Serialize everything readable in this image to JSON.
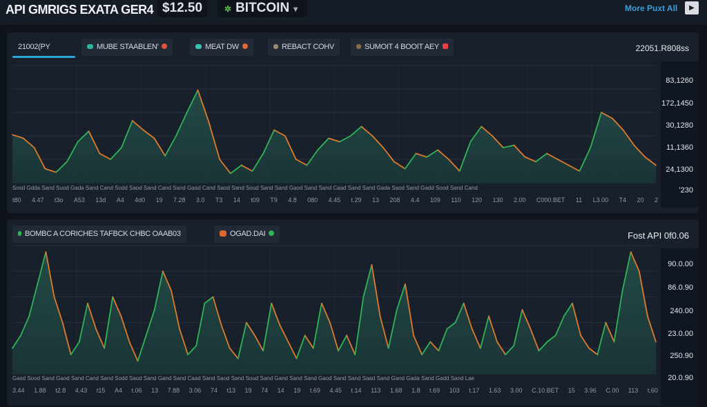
{
  "header": {
    "title": "API GMRIGS EXATA GER4",
    "price": "$12.50",
    "coin": "BITCOIN",
    "coin_icon": "bitcoin-icon",
    "more_link": "More Puxt All",
    "play_icon": "play-icon"
  },
  "colors": {
    "up": "#2fb457",
    "down": "#e07b2c",
    "down2": "#d95c38",
    "fill": "#1f4040",
    "accent": "#2aa7d6"
  },
  "panel1": {
    "tabs": [
      {
        "label": "21002(PY",
        "active": true
      },
      {
        "label": "MUBE STAABLEN'",
        "dot": "#2bb59a",
        "end_dot": "#e2533a"
      },
      {
        "label": "MEAT DW",
        "dot": "#38c2b0",
        "end_dot": "#e2693a"
      },
      {
        "label": "REBACT COHV",
        "dot": "#9c8a70"
      },
      {
        "label": "SUMOIT 4 BOOIT AEY",
        "dot": "#8a6a4a",
        "end_dot": "#e8403c"
      }
    ],
    "right_text": "22051.R808ss",
    "y_labels": [
      "83,1260",
      "172,1450",
      "30,1280",
      "11,1360",
      "24,1300",
      "'230"
    ],
    "x_row1": "Sosd Gdda Sand Suod Gada Sand Cand Sodd Saod Sand Cand Sand Gaad Cand Saod Sand Soud Sand Sand Gaod Sand Sand Caad Sand Sand Gada Saod Sand Gadd Sood Sand Cand",
    "x_labels": [
      "t80",
      "4.47",
      "t3o",
      "A53",
      "13d",
      "A4",
      "4d0",
      "19",
      "7.28",
      "3.0",
      "T3",
      "14",
      "t09",
      "T9",
      "4.8",
      "080",
      "4.45",
      "t.29",
      "13",
      "208",
      "4.4",
      "109",
      "110",
      "120",
      "130",
      "2.00",
      "C000.BET",
      "11",
      "L3.00",
      "T4",
      "20",
      "2"
    ]
  },
  "panel2": {
    "tabs": [
      {
        "label": "BOMBC A CORICHES TAFBCK CHBC OAAB03",
        "dot": "#2fb457"
      },
      {
        "label": "OGAD.DAI",
        "dot": "#e0672c",
        "end_dot": "#2fb457"
      }
    ],
    "right_text": "Fost API 0f0.06",
    "y_labels": [
      "90.0.00",
      "86.0.90",
      "240.00",
      "23.0.00",
      "250.90",
      "20.0.90"
    ],
    "x_row1": "Gasd Sood Sand Gaod Sand Cand Sand Sodd Saod Sand Gand Sand Caad Sand Saod Sand Soud Sand Gand Sand Sand Gaod Sand Sand Saad Sand Gand Gada Sand Gadd Sand Lae",
    "x_labels": [
      "3.44",
      "1.88",
      "t2.8",
      "4.43",
      "t15",
      "A4",
      "t.06",
      "13",
      "7.88",
      "3.06",
      "74",
      "t13",
      "19",
      "74",
      "14",
      "19",
      "t.69",
      "4.45",
      "t.14",
      "113",
      "1.68",
      "1.8",
      "t.69",
      "103",
      "t.17",
      "1.63",
      "3.00",
      "C.10.BET",
      "15",
      "3.96",
      "C.00",
      "113",
      "t.60"
    ]
  },
  "chart_data": [
    {
      "type": "area",
      "title": "",
      "ylim": [
        0,
        100
      ],
      "y_tick_labels": [
        "83,1260",
        "172,1450",
        "30,1280",
        "11,1360",
        "24,1300",
        "'230"
      ],
      "grid": true,
      "values": [
        41,
        38,
        30,
        12,
        9,
        18,
        35,
        44,
        25,
        20,
        30,
        53,
        45,
        38,
        23,
        40,
        60,
        79,
        52,
        20,
        8,
        15,
        10,
        25,
        45,
        40,
        20,
        15,
        28,
        38,
        35,
        40,
        48,
        40,
        30,
        18,
        12,
        25,
        22,
        28,
        20,
        10,
        35,
        48,
        40,
        30,
        32,
        22,
        18,
        25,
        20,
        15,
        10,
        30,
        60,
        55,
        45,
        32,
        22,
        15
      ]
    },
    {
      "type": "area",
      "title": "",
      "ylim": [
        0,
        100
      ],
      "y_tick_labels": [
        "90.0.00",
        "86.0.90",
        "240.00",
        "23.0.00",
        "250.90",
        "20.0.90"
      ],
      "grid": true,
      "values": [
        20,
        30,
        45,
        70,
        95,
        60,
        40,
        15,
        25,
        55,
        35,
        20,
        60,
        45,
        25,
        10,
        30,
        50,
        80,
        65,
        35,
        15,
        22,
        55,
        60,
        38,
        20,
        12,
        40,
        30,
        18,
        55,
        38,
        25,
        12,
        30,
        20,
        55,
        40,
        18,
        30,
        15,
        60,
        85,
        45,
        20,
        50,
        70,
        30,
        15,
        25,
        18,
        35,
        40,
        55,
        35,
        20,
        45,
        25,
        15,
        22,
        50,
        35,
        18,
        25,
        30,
        45,
        55,
        30,
        20,
        15,
        40,
        25,
        65,
        95,
        80,
        45,
        25
      ]
    }
  ]
}
